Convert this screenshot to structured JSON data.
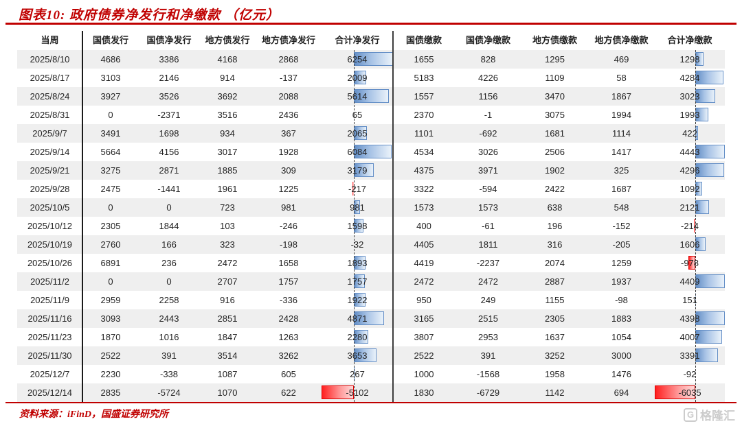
{
  "title": "图表10:  政府债券净发行和净缴款 （亿元）",
  "source": "资料来源：iFinD，国盛证券研究所",
  "watermark": {
    "icon": "G",
    "label": "格隆汇"
  },
  "colors": {
    "accent_red": "#C00000",
    "bar_positive": "#638EC6",
    "bar_negative": "#FF1F1F",
    "stripe": "#EFEFEF"
  },
  "chart_data": {
    "type": "table",
    "title": "政府债券净发行和净缴款 （亿元）",
    "columns": [
      "当周",
      "国债发行",
      "国债净发行",
      "地方债发行",
      "地方债净发行",
      "合计净发行",
      "国债缴款",
      "国债净缴款",
      "地方债缴款",
      "地方债净缴款",
      "合计净缴款"
    ],
    "rows": [
      [
        "2025/8/10",
        4686,
        3386,
        4168,
        2868,
        6254,
        1655,
        828,
        1295,
        469,
        1298
      ],
      [
        "2025/8/17",
        3103,
        2146,
        914,
        -137,
        2009,
        5183,
        4226,
        1109,
        58,
        4284
      ],
      [
        "2025/8/24",
        3927,
        3526,
        3692,
        2088,
        5614,
        1557,
        1156,
        3470,
        1867,
        3023
      ],
      [
        "2025/8/31",
        0,
        -2371,
        3516,
        2436,
        65,
        2370,
        -1,
        3075,
        1994,
        1993
      ],
      [
        "2025/9/7",
        3491,
        1698,
        934,
        367,
        2065,
        1101,
        -692,
        1681,
        1114,
        422
      ],
      [
        "2025/9/14",
        5664,
        4156,
        3017,
        1928,
        6084,
        4534,
        3026,
        2506,
        1417,
        4443
      ],
      [
        "2025/9/21",
        3275,
        2871,
        1885,
        309,
        3179,
        4375,
        3971,
        1902,
        325,
        4296
      ],
      [
        "2025/9/28",
        2475,
        -1441,
        1961,
        1225,
        -217,
        3322,
        -594,
        2422,
        1687,
        1092
      ],
      [
        "2025/10/5",
        0,
        0,
        723,
        981,
        981,
        1573,
        1573,
        638,
        548,
        2121
      ],
      [
        "2025/10/12",
        2305,
        1844,
        103,
        -246,
        1598,
        400,
        -61,
        196,
        -152,
        -214
      ],
      [
        "2025/10/19",
        2760,
        166,
        323,
        -198,
        -32,
        4405,
        1811,
        316,
        -205,
        1606
      ],
      [
        "2025/10/26",
        6891,
        236,
        2472,
        1658,
        1893,
        4419,
        -2237,
        2074,
        1259,
        -978
      ],
      [
        "2025/11/2",
        0,
        0,
        2707,
        1757,
        1757,
        2472,
        2472,
        2887,
        1937,
        4409
      ],
      [
        "2025/11/9",
        2959,
        2258,
        916,
        -336,
        1922,
        950,
        249,
        1155,
        -98,
        151
      ],
      [
        "2025/11/16",
        3093,
        2443,
        2851,
        2428,
        4871,
        3165,
        2515,
        2305,
        1883,
        4398
      ],
      [
        "2025/11/23",
        1870,
        1016,
        1847,
        1263,
        2280,
        3807,
        2953,
        1637,
        1054,
        4007
      ],
      [
        "2025/11/30",
        2522,
        391,
        3514,
        3262,
        3653,
        2522,
        391,
        3252,
        3000,
        3391
      ],
      [
        "2025/12/7",
        2230,
        -338,
        1087,
        605,
        267,
        1000,
        -1568,
        1958,
        1476,
        -92
      ],
      [
        "2025/12/14",
        2835,
        -5724,
        1070,
        622,
        -5102,
        1830,
        -6729,
        1142,
        694,
        -6035
      ]
    ],
    "databar_columns": [
      {
        "col": 5,
        "label": "合计净发行",
        "min": -5102,
        "max": 6254
      },
      {
        "col": 10,
        "label": "合计净缴款",
        "min": -6035,
        "max": 4443
      }
    ],
    "layout": {
      "zero_axis": "dashed",
      "row_striping": true,
      "split_divider_after_col": 5
    }
  }
}
